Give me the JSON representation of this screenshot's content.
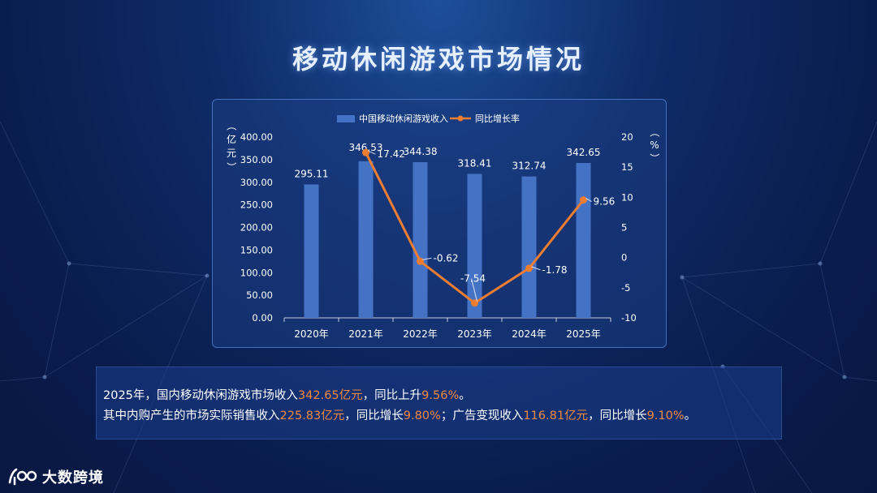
{
  "title": "移动休闲游戏市场情况",
  "chart_data": {
    "type": "bar",
    "categories": [
      "2020年",
      "2021年",
      "2022年",
      "2023年",
      "2024年",
      "2025年"
    ],
    "series": [
      {
        "name": "中国移动休闲游戏收入",
        "type": "bar",
        "axis": "left",
        "values": [
          295.11,
          346.53,
          344.38,
          318.41,
          312.74,
          342.65
        ],
        "labels": [
          "295.11",
          "346.53",
          "344.38",
          "318.41",
          "312.74",
          "342.65"
        ]
      },
      {
        "name": "同比增长率",
        "type": "line",
        "axis": "right",
        "values": [
          null,
          17.42,
          -0.62,
          -7.54,
          -1.78,
          9.56
        ],
        "labels": [
          "",
          "17.42",
          "-0.62",
          "-7.54",
          "-1.78",
          "9.56"
        ]
      }
    ],
    "left_axis": {
      "unit": "（亿元）",
      "range": [
        0,
        400
      ],
      "ticks": [
        "0.00",
        "50.00",
        "100.00",
        "150.00",
        "200.00",
        "250.00",
        "300.00",
        "350.00",
        "400.00"
      ]
    },
    "right_axis": {
      "unit": "（%）",
      "range": [
        -10,
        20
      ],
      "ticks": [
        "-10",
        "-5",
        "0",
        "5",
        "10",
        "15",
        "20"
      ]
    },
    "legend": "top",
    "grid": false,
    "colors": {
      "bar": "#4472c4",
      "line": "#ed7d31"
    }
  },
  "summary": {
    "l1_a": "2025年，国内移动休闲游戏市场收入",
    "l1_b": "342.65亿元",
    "l1_c": "，同比上升",
    "l1_d": "9.56%",
    "l1_e": "。",
    "l2_a": "其中内购产生的市场实际销售收入",
    "l2_b": "225.83亿元",
    "l2_c": "，同比增长",
    "l2_d": "9.80%",
    "l2_e": "；广告变现收入",
    "l2_f": "116.81亿元",
    "l2_g": "，同比增长",
    "l2_h": "9.10%",
    "l2_i": "。"
  },
  "brand": {
    "name": "大数跨境"
  },
  "colors": {
    "highlight": "#f08a3c"
  }
}
